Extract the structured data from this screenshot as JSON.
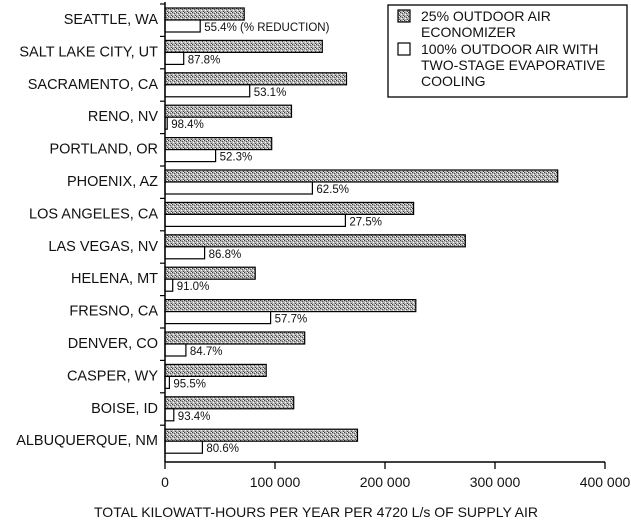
{
  "chart_data": {
    "type": "bar",
    "orientation": "horizontal",
    "title": "",
    "xlabel": "TOTAL KILOWATT-HOURS PER YEAR PER 4720 L/s OF SUPPLY AIR",
    "ylabel": "",
    "xlim": [
      0,
      400000
    ],
    "xticks": [
      0,
      100000,
      200000,
      300000,
      400000
    ],
    "xtick_labels": [
      "0",
      "100 000",
      "200 000",
      "300 000",
      "400 000"
    ],
    "grid": false,
    "legend_position": "top-right",
    "categories": [
      "SEATTLE, WA",
      "SALT LAKE CITY, UT",
      "SACRAMENTO, CA",
      "RENO, NV",
      "PORTLAND, OR",
      "PHOENIX, AZ",
      "LOS ANGELES, CA",
      "LAS VEGAS, NV",
      "HELENA, MT",
      "FRESNO, CA",
      "DENVER, CO",
      "CASPER, WY",
      "BOISE, ID",
      "ALBUQUERQUE, NM"
    ],
    "series": [
      {
        "name": "25% OUTDOOR AIR ECONOMIZER",
        "legend_lines": [
          "25% OUTDOOR AIR",
          "ECONOMIZER"
        ],
        "fill": "#9a9a9a",
        "values": [
          72000,
          143000,
          165000,
          115000,
          97000,
          357000,
          226000,
          273000,
          82000,
          228000,
          127000,
          92000,
          117000,
          175000
        ]
      },
      {
        "name": "100% OUTDOOR AIR WITH TWO-STAGE EVAPORATIVE COOLING",
        "legend_lines": [
          "100% OUTDOOR AIR WITH",
          "TWO-STAGE EVAPORATIVE",
          "COOLING"
        ],
        "fill": "#ffffff",
        "values": [
          32000,
          17000,
          77000,
          2000,
          46000,
          134000,
          164000,
          36000,
          7000,
          96000,
          19000,
          4000,
          8000,
          34000
        ]
      }
    ],
    "annotations": [
      "55.4% (% REDUCTION)",
      "87.8%",
      "53.1%",
      "98.4%",
      "52.3%",
      "62.5%",
      "27.5%",
      "86.8%",
      "91.0%",
      "57.7%",
      "84.7%",
      "95.5%",
      "93.4%",
      "80.6%"
    ]
  }
}
